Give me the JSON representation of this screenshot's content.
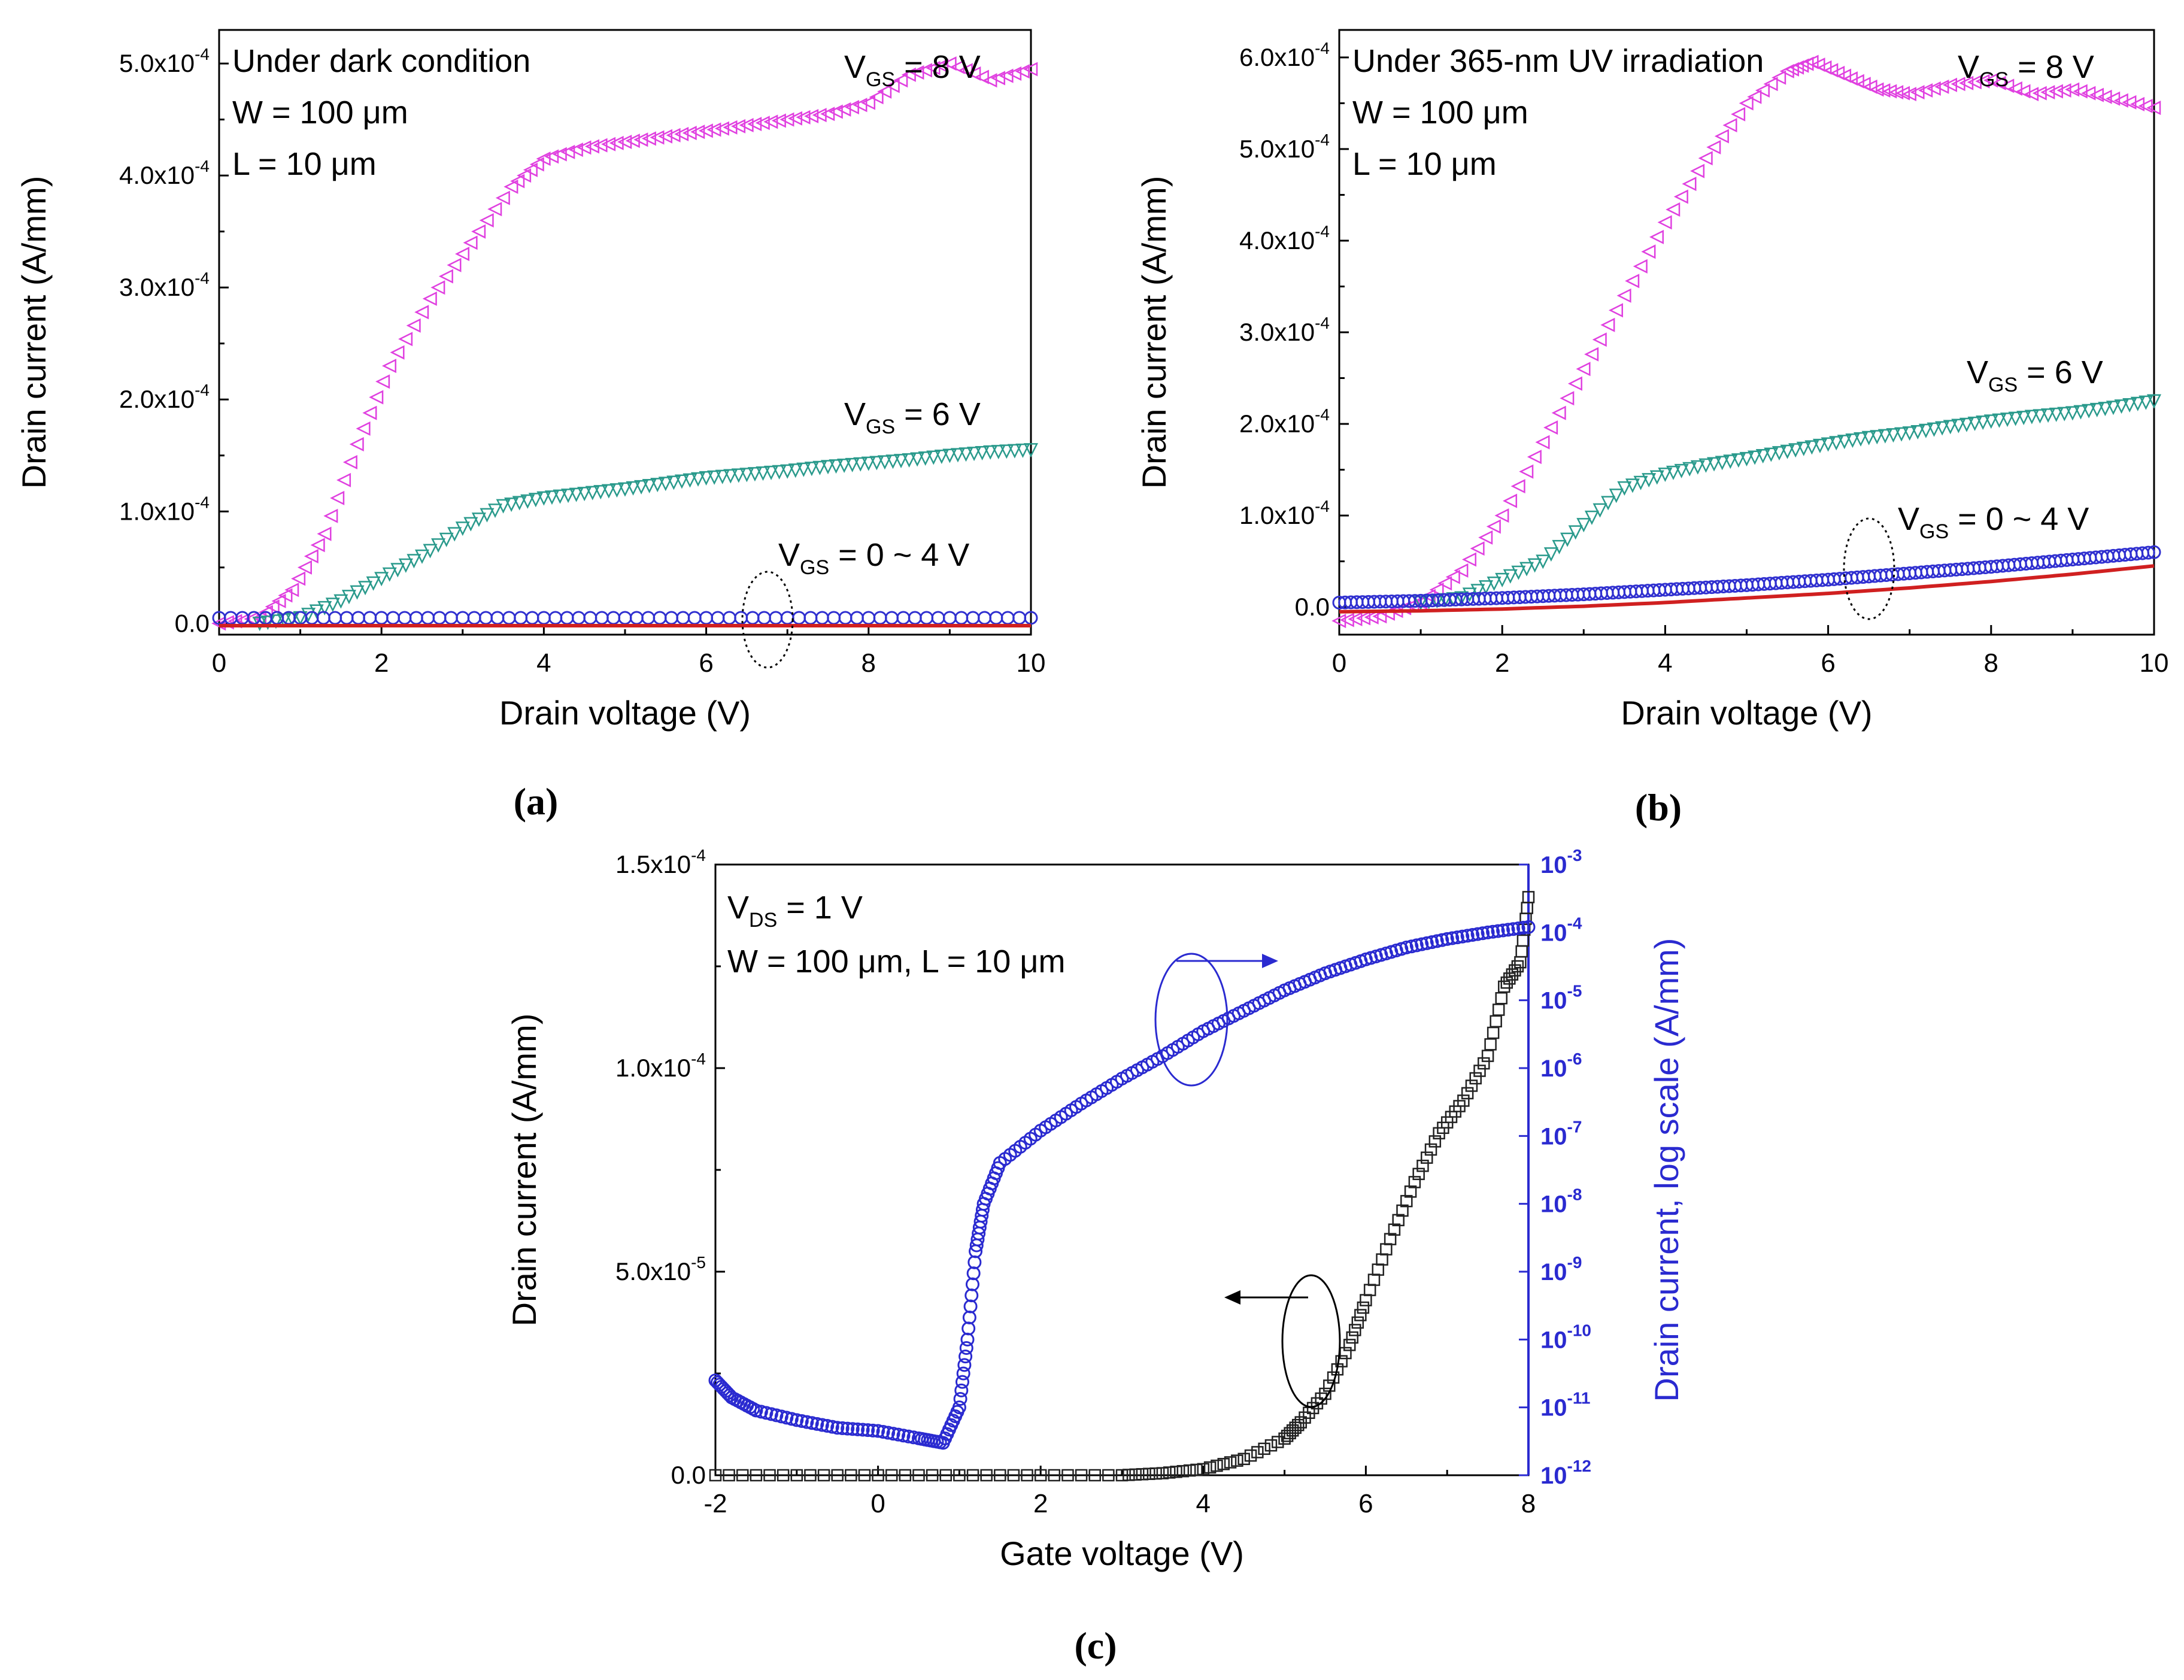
{
  "captions": {
    "a": "(a)",
    "b": "(b)",
    "c": "(c)"
  },
  "chart_data": [
    {
      "type": "scatter",
      "panel": "a",
      "xlabel": "Drain voltage (V)",
      "ylabel": "Drain current (A/mm)",
      "xlim": [
        0,
        10
      ],
      "ylim": [
        -1e-05,
        0.00053
      ],
      "xticks": [
        0,
        2,
        4,
        6,
        8,
        10
      ],
      "xtick_labels": [
        "0",
        "2",
        "4",
        "6",
        "8",
        "10"
      ],
      "yticks": [
        0,
        0.0001,
        0.0002,
        0.0003,
        0.0004,
        0.0005
      ],
      "ytick_labels": [
        "0.0",
        "1.0x10",
        "2.0x10",
        "3.0x10",
        "4.0x10",
        "5.0x10"
      ],
      "ytick_exp": [
        "",
        "-4",
        "-4",
        "-4",
        "-4",
        "-4"
      ],
      "annotations": [
        "Under dark condition",
        "W = 100 μm",
        "L = 10 μm"
      ],
      "series_labels": [
        {
          "main": "V",
          "sub": "GS",
          "rest": " = 8 V"
        },
        {
          "main": "V",
          "sub": "GS",
          "rest": " = 6 V"
        },
        {
          "main": "V",
          "sub": "GS",
          "rest": " = 0 ~ 4 V"
        }
      ],
      "colors": {
        "vgs8": "#e040e0",
        "vgs6": "#2a9a8c",
        "vgs4": "#3030d0",
        "vgs0": "#d02020"
      },
      "series": [
        {
          "key": "vgs8",
          "marker": "triangle-left",
          "x": [
            0,
            0.5,
            0.9,
            1.3,
            1.7,
            2.1,
            2.6,
            3.1,
            3.6,
            4.0,
            4.5,
            5.0,
            5.5,
            6.0,
            6.5,
            7.0,
            7.5,
            8.0,
            8.5,
            9.0,
            9.5,
            10
          ],
          "y": [
            0,
            5e-06,
            3e-05,
            8e-05,
            0.00016,
            0.00023,
            0.00029,
            0.00034,
            0.00039,
            0.000415,
            0.000425,
            0.00043,
            0.000435,
            0.00044,
            0.000445,
            0.00045,
            0.000455,
            0.000465,
            0.00049,
            0.0005,
            0.000485,
            0.000495
          ]
        },
        {
          "key": "vgs6",
          "marker": "triangle-down",
          "x": [
            0.5,
            1.0,
            1.5,
            2.0,
            2.5,
            3.0,
            3.5,
            4.0,
            4.5,
            5.0,
            5.5,
            6.0,
            6.5,
            7.0,
            7.5,
            8.0,
            8.5,
            9.0,
            9.5,
            10
          ],
          "y": [
            0,
            5e-06,
            2e-05,
            4e-05,
            6e-05,
            8.5e-05,
            0.000105,
            0.000112,
            0.000116,
            0.00012,
            0.000125,
            0.00013,
            0.000133,
            0.000136,
            0.00014,
            0.000143,
            0.000146,
            0.00015,
            0.000153,
            0.000155
          ]
        },
        {
          "key": "vgs4",
          "marker": "circle",
          "x": [
            0,
            2,
            4,
            6,
            8,
            10
          ],
          "y": [
            5e-06,
            5e-06,
            5e-06,
            5e-06,
            5e-06,
            5e-06
          ]
        },
        {
          "key": "vgs0",
          "marker": "line",
          "x": [
            0,
            10
          ],
          "y": [
            -2e-06,
            -2e-06
          ]
        }
      ]
    },
    {
      "type": "scatter",
      "panel": "b",
      "xlabel": "Drain voltage (V)",
      "ylabel": "Drain current (A/mm)",
      "xlim": [
        0,
        10
      ],
      "ylim": [
        -3e-05,
        0.00063
      ],
      "xticks": [
        0,
        2,
        4,
        6,
        8,
        10
      ],
      "xtick_labels": [
        "0",
        "2",
        "4",
        "6",
        "8",
        "10"
      ],
      "yticks": [
        0,
        0.0001,
        0.0002,
        0.0003,
        0.0004,
        0.0005,
        0.0006
      ],
      "ytick_labels": [
        "0.0",
        "1.0x10",
        "2.0x10",
        "3.0x10",
        "4.0x10",
        "5.0x10",
        "6.0x10"
      ],
      "ytick_exp": [
        "",
        "-4",
        "-4",
        "-4",
        "-4",
        "-4",
        "-4"
      ],
      "annotations": [
        "Under 365-nm UV irradiation",
        "W = 100 μm",
        "L = 10 μm"
      ],
      "series_labels": [
        {
          "main": "V",
          "sub": "GS",
          "rest": " = 8 V"
        },
        {
          "main": "V",
          "sub": "GS",
          "rest": " = 6 V"
        },
        {
          "main": "V",
          "sub": "GS",
          "rest": " = 0 ~ 4 V"
        }
      ],
      "colors": {
        "vgs8": "#e040e0",
        "vgs6": "#2a9a8c",
        "vgs4": "#3030d0",
        "vgs0": "#d02020"
      },
      "series": [
        {
          "key": "vgs8",
          "marker": "triangle-left",
          "x": [
            0,
            0.5,
            1.0,
            1.5,
            2.0,
            2.5,
            3.0,
            3.5,
            4.0,
            4.5,
            5.0,
            5.5,
            5.8,
            6.2,
            6.6,
            7.0,
            7.5,
            8.0,
            8.5,
            9.0,
            9.5,
            10
          ],
          "y": [
            -1.5e-05,
            -1e-05,
            5e-06,
            4e-05,
            0.0001,
            0.00018,
            0.00026,
            0.00034,
            0.00042,
            0.00049,
            0.00055,
            0.000585,
            0.000595,
            0.00058,
            0.000565,
            0.00056,
            0.00057,
            0.000575,
            0.00056,
            0.000565,
            0.000555,
            0.000545
          ]
        },
        {
          "key": "vgs6",
          "marker": "triangle-down",
          "x": [
            1.0,
            1.5,
            2.0,
            2.5,
            3.0,
            3.5,
            4.0,
            4.5,
            5.0,
            5.5,
            6.0,
            6.5,
            7.0,
            7.5,
            8.0,
            8.5,
            9.0,
            9.5,
            10
          ],
          "y": [
            5e-06,
            1e-05,
            3e-05,
            5e-05,
            9e-05,
            0.00013,
            0.000145,
            0.000155,
            0.000162,
            0.00017,
            0.000178,
            0.000185,
            0.00019,
            0.000197,
            0.000203,
            0.000208,
            0.000212,
            0.000218,
            0.000225
          ]
        },
        {
          "key": "vgs4",
          "marker": "circle",
          "x": [
            0,
            1,
            2,
            3,
            4,
            5,
            6,
            7,
            8,
            9,
            10
          ],
          "y": [
            5e-06,
            7e-06,
            1e-05,
            1.4e-05,
            1.9e-05,
            2.4e-05,
            3e-05,
            3.7e-05,
            4.4e-05,
            5.2e-05,
            6e-05
          ]
        },
        {
          "key": "vgs0",
          "marker": "line",
          "x": [
            0,
            1,
            2,
            3,
            4,
            5,
            6,
            7,
            8,
            9,
            10
          ],
          "y": [
            -5e-06,
            -4e-06,
            -2e-06,
            1e-06,
            5e-06,
            1e-05,
            1.5e-05,
            2.1e-05,
            2.8e-05,
            3.6e-05,
            4.5e-05
          ]
        }
      ]
    },
    {
      "type": "scatter",
      "panel": "c",
      "xlabel": "Gate voltage (V)",
      "ylabel": "Drain current (A/mm)",
      "ylabel_right": "Drain current, log scale (A/mm)",
      "xlim": [
        -2,
        8
      ],
      "ylim": [
        0,
        0.00015
      ],
      "ylim_right": [
        1e-12,
        0.001
      ],
      "yscale_right": "log",
      "xticks": [
        -2,
        0,
        2,
        4,
        6,
        8
      ],
      "xtick_labels": [
        "-2",
        "0",
        "2",
        "4",
        "6",
        "8"
      ],
      "yticks": [
        0,
        5e-05,
        0.0001,
        0.00015
      ],
      "ytick_labels": [
        "0.0",
        "5.0x10",
        "1.0x10",
        "1.5x10"
      ],
      "ytick_exp": [
        "",
        "-5",
        "-4",
        "-4"
      ],
      "yticks_right_exp": [
        "-12",
        "-11",
        "-10",
        "-9",
        "-8",
        "-7",
        "-6",
        "-5",
        "-4",
        "-3"
      ],
      "ytick_right_base": "10",
      "annotations": [
        "W = 100 μm, L = 10 μm"
      ],
      "vds_label": {
        "main": "V",
        "sub": "DS",
        "rest": " = 1 V"
      },
      "colors": {
        "linear": "#222222",
        "log": "#2a2ad0"
      },
      "series": [
        {
          "key": "linear",
          "axis": "left",
          "marker": "square",
          "x": [
            -2,
            -1,
            0,
            1,
            2,
            3,
            3.5,
            4.0,
            4.5,
            5.0,
            5.2,
            5.5,
            5.8,
            6.0,
            6.3,
            6.6,
            6.9,
            7.2,
            7.5,
            7.7,
            7.9,
            8.0
          ],
          "y": [
            0,
            0,
            0,
            0,
            0,
            0,
            5e-07,
            1.5e-06,
            4e-06,
            9e-06,
            1.3e-05,
            2e-05,
            3.2e-05,
            4.3e-05,
            5.8e-05,
            7.2e-05,
            8.4e-05,
            9.2e-05,
            0.000103,
            0.00012,
            0.000126,
            0.000142
          ]
        },
        {
          "key": "log",
          "axis": "right",
          "marker": "circle",
          "x": [
            -2,
            -1.8,
            -1.5,
            -1,
            -0.5,
            0,
            0.5,
            0.8,
            1.0,
            1.1,
            1.2,
            1.3,
            1.5,
            2.0,
            2.5,
            3.0,
            3.5,
            4.0,
            4.5,
            5.0,
            5.5,
            6.0,
            6.5,
            7.0,
            7.5,
            8.0
          ],
          "y": [
            2.5e-11,
            1.4e-11,
            9e-12,
            6.5e-12,
            5e-12,
            4.5e-12,
            3.5e-12,
            3e-12,
            1e-11,
            1e-10,
            2e-09,
            1e-08,
            4e-08,
            1.2e-07,
            3e-07,
            7e-07,
            1.5e-06,
            3.5e-06,
            7e-06,
            1.4e-05,
            2.5e-05,
            4e-05,
            6e-05,
            8e-05,
            0.0001,
            0.00012
          ]
        }
      ]
    }
  ]
}
